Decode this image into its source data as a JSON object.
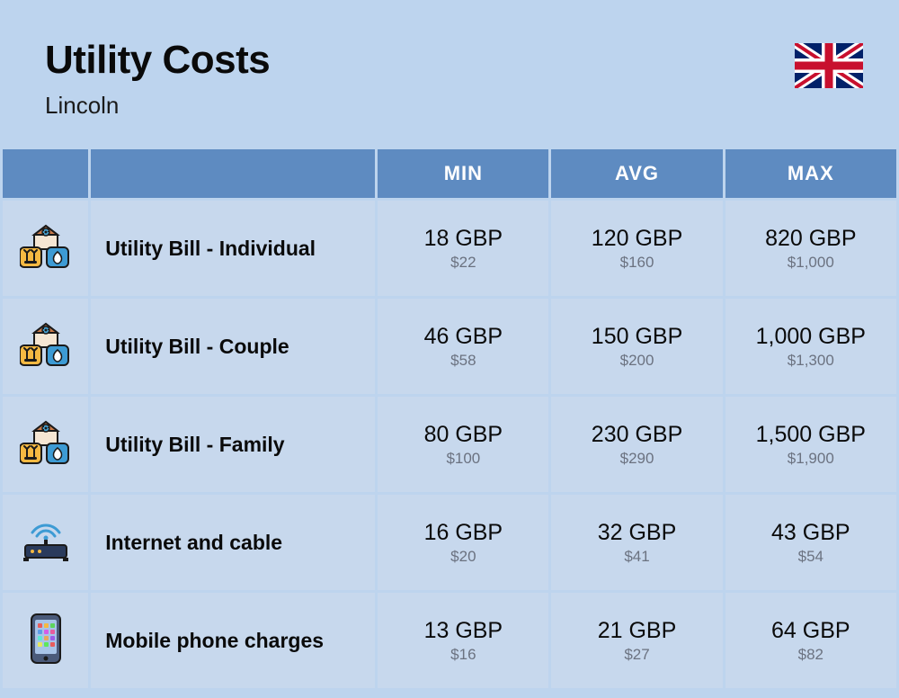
{
  "header": {
    "title": "Utility Costs",
    "subtitle": "Lincoln",
    "flag": "uk"
  },
  "colors": {
    "page_bg": "#bdd4ee",
    "header_cell_bg": "#5e8bc1",
    "header_text": "#ffffff",
    "data_cell_bg": "#c7d8ed",
    "label_text": "#0a0a0a",
    "value_main": "#0a0a0a",
    "value_sub": "#6b7280"
  },
  "table": {
    "columns": [
      "MIN",
      "AVG",
      "MAX"
    ],
    "rows": [
      {
        "icon": "utility-house",
        "label": "Utility Bill - Individual",
        "values": [
          {
            "main": "18 GBP",
            "sub": "$22"
          },
          {
            "main": "120 GBP",
            "sub": "$160"
          },
          {
            "main": "820 GBP",
            "sub": "$1,000"
          }
        ]
      },
      {
        "icon": "utility-house",
        "label": "Utility Bill - Couple",
        "values": [
          {
            "main": "46 GBP",
            "sub": "$58"
          },
          {
            "main": "150 GBP",
            "sub": "$200"
          },
          {
            "main": "1,000 GBP",
            "sub": "$1,300"
          }
        ]
      },
      {
        "icon": "utility-house",
        "label": "Utility Bill - Family",
        "values": [
          {
            "main": "80 GBP",
            "sub": "$100"
          },
          {
            "main": "230 GBP",
            "sub": "$290"
          },
          {
            "main": "1,500 GBP",
            "sub": "$1,900"
          }
        ]
      },
      {
        "icon": "router",
        "label": "Internet and cable",
        "values": [
          {
            "main": "16 GBP",
            "sub": "$20"
          },
          {
            "main": "32 GBP",
            "sub": "$41"
          },
          {
            "main": "43 GBP",
            "sub": "$54"
          }
        ]
      },
      {
        "icon": "phone",
        "label": "Mobile phone charges",
        "values": [
          {
            "main": "13 GBP",
            "sub": "$16"
          },
          {
            "main": "21 GBP",
            "sub": "$27"
          },
          {
            "main": "64 GBP",
            "sub": "$82"
          }
        ]
      }
    ]
  }
}
